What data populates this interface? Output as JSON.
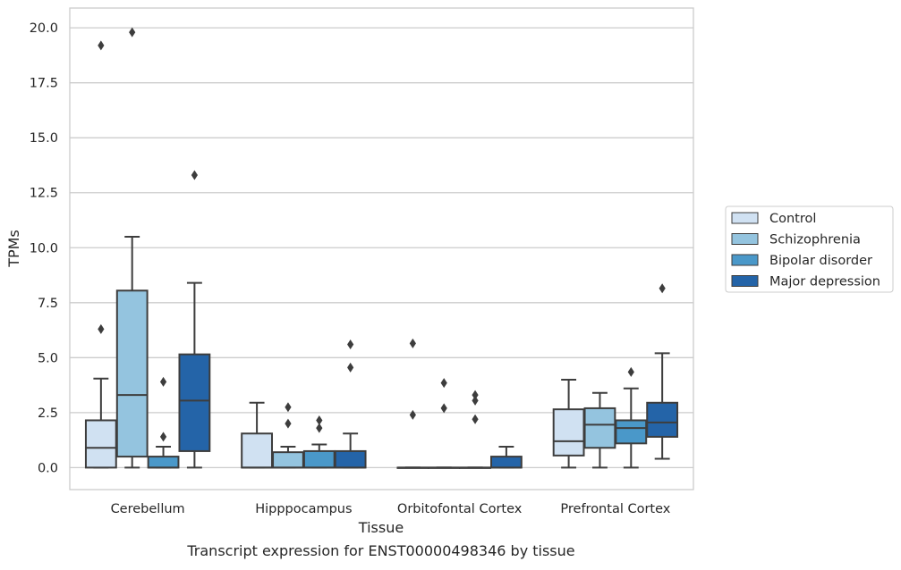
{
  "caption": "Transcript expression for ENST00000498346 by tissue",
  "chart_data": {
    "type": "box",
    "xlabel": "Tissue",
    "ylabel": "TPMs",
    "ylim": [
      -1.0,
      20.9
    ],
    "yticks": [
      "0.0",
      "2.5",
      "5.0",
      "7.5",
      "10.0",
      "12.5",
      "15.0",
      "17.5",
      "20.0"
    ],
    "ytick_values": [
      0,
      2.5,
      5,
      7.5,
      10,
      12.5,
      15,
      17.5,
      20
    ],
    "grid": "horizontal",
    "legend_position": "right",
    "categories": [
      "Cerebellum",
      "Hipppocampus",
      "Orbitofontal Cortex",
      "Prefrontal Cortex"
    ],
    "series": [
      {
        "name": "Control",
        "color": "#d0e1f2",
        "boxes": [
          {
            "whisker_low": 0,
            "q1": 0,
            "median": 0.9,
            "q3": 2.15,
            "whisker_high": 4.05,
            "outliers": [
              6.3,
              19.2
            ]
          },
          {
            "whisker_low": 0,
            "q1": 0,
            "median": 0,
            "q3": 1.55,
            "whisker_high": 2.95,
            "outliers": []
          },
          {
            "whisker_low": 0,
            "q1": 0,
            "median": 0,
            "q3": 0,
            "whisker_high": 0,
            "outliers": [
              2.4,
              5.65
            ]
          },
          {
            "whisker_low": 0,
            "q1": 0.55,
            "median": 1.2,
            "q3": 2.65,
            "whisker_high": 4.0,
            "outliers": []
          }
        ]
      },
      {
        "name": "Schizophrenia",
        "color": "#94c4df",
        "boxes": [
          {
            "whisker_low": 0,
            "q1": 0.5,
            "median": 3.3,
            "q3": 8.05,
            "whisker_high": 10.5,
            "outliers": [
              19.8
            ]
          },
          {
            "whisker_low": 0,
            "q1": 0,
            "median": 0,
            "q3": 0.7,
            "whisker_high": 0.95,
            "outliers": [
              2.0,
              2.75
            ]
          },
          {
            "whisker_low": 0,
            "q1": 0,
            "median": 0,
            "q3": 0,
            "whisker_high": 0,
            "outliers": [
              2.7,
              3.85
            ]
          },
          {
            "whisker_low": 0,
            "q1": 0.9,
            "median": 1.95,
            "q3": 2.7,
            "whisker_high": 3.4,
            "outliers": []
          }
        ]
      },
      {
        "name": "Bipolar disorder",
        "color": "#4a98c9",
        "boxes": [
          {
            "whisker_low": 0,
            "q1": 0,
            "median": 0,
            "q3": 0.5,
            "whisker_high": 0.95,
            "outliers": [
              1.4,
              3.9
            ]
          },
          {
            "whisker_low": 0,
            "q1": 0,
            "median": 0,
            "q3": 0.75,
            "whisker_high": 1.05,
            "outliers": [
              1.8,
              2.15
            ]
          },
          {
            "whisker_low": 0,
            "q1": 0,
            "median": 0,
            "q3": 0,
            "whisker_high": 0,
            "outliers": [
              2.2,
              3.05,
              3.3
            ]
          },
          {
            "whisker_low": 0,
            "q1": 1.1,
            "median": 1.8,
            "q3": 2.15,
            "whisker_high": 3.6,
            "outliers": [
              4.35
            ]
          }
        ]
      },
      {
        "name": "Major depression",
        "color": "#2464a8",
        "boxes": [
          {
            "whisker_low": 0,
            "q1": 0.75,
            "median": 3.05,
            "q3": 5.15,
            "whisker_high": 8.4,
            "outliers": [
              13.3
            ]
          },
          {
            "whisker_low": 0,
            "q1": 0,
            "median": 0,
            "q3": 0.75,
            "whisker_high": 1.55,
            "outliers": [
              4.55,
              5.6
            ]
          },
          {
            "whisker_low": 0,
            "q1": 0,
            "median": 0,
            "q3": 0.5,
            "whisker_high": 0.95,
            "outliers": []
          },
          {
            "whisker_low": 0.4,
            "q1": 1.4,
            "median": 2.05,
            "q3": 2.95,
            "whisker_high": 5.2,
            "outliers": [
              8.15
            ]
          }
        ]
      }
    ]
  }
}
